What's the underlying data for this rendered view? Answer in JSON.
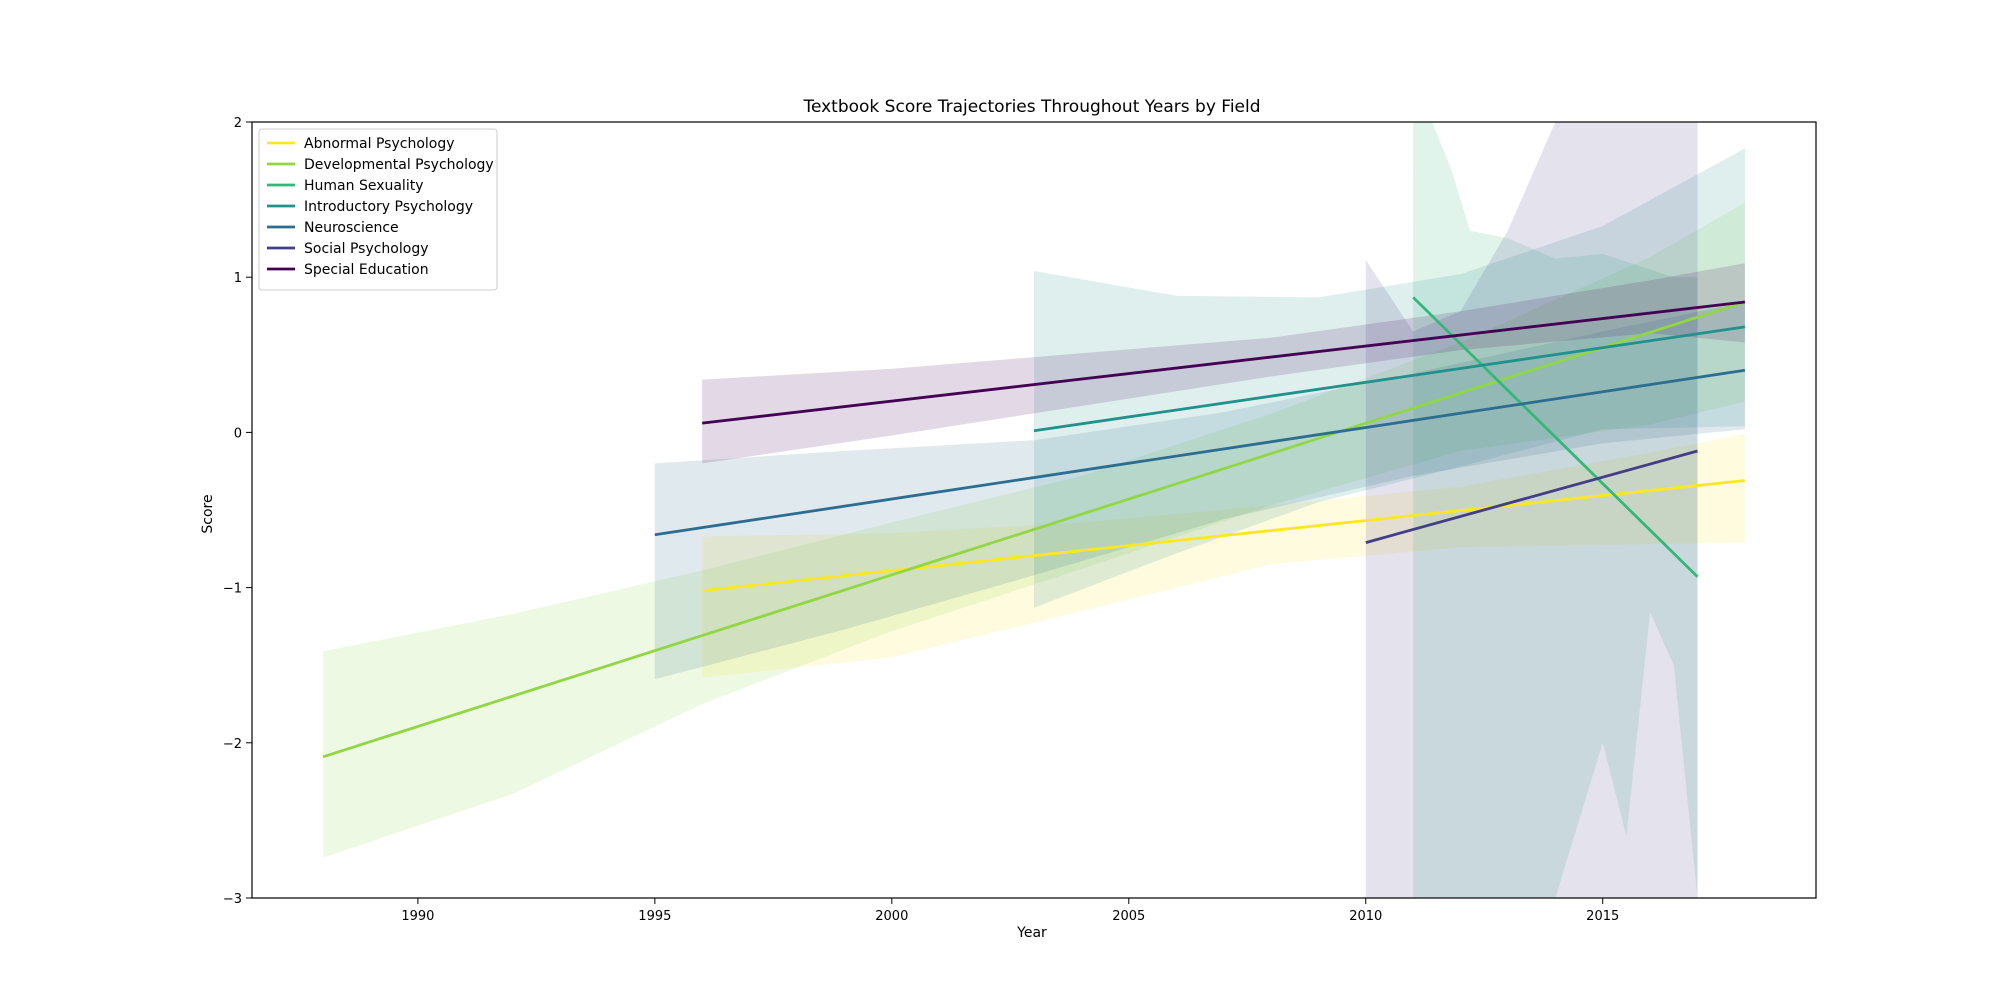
{
  "chart_data": {
    "type": "line",
    "title": "Textbook Score Trajectories Throughout Years by Field",
    "xlabel": "Year",
    "ylabel": "Score",
    "xlim": [
      1986.5,
      2019.5
    ],
    "ylim": [
      -3,
      2
    ],
    "xticks": [
      1990,
      1995,
      2000,
      2005,
      2010,
      2015
    ],
    "yticks": [
      -3,
      -2,
      -1,
      0,
      1,
      2
    ],
    "yticklabels": [
      "−3",
      "−2",
      "−1",
      "0",
      "1",
      "2"
    ],
    "grid": false,
    "legend_position": "upper-left",
    "series": [
      {
        "name": "Abnormal Psychology",
        "color": "#fde725",
        "x": [
          1996,
          2018
        ],
        "y": [
          -1.02,
          -0.31
        ],
        "band": {
          "x": [
            1996,
            2000,
            2004,
            2008,
            2012,
            2016,
            2018
          ],
          "lower": [
            -1.58,
            -1.45,
            -1.15,
            -0.85,
            -0.74,
            -0.72,
            -0.71
          ],
          "upper": [
            -0.67,
            -0.65,
            -0.58,
            -0.47,
            -0.35,
            -0.13,
            -0.01
          ]
        }
      },
      {
        "name": "Developmental Psychology",
        "color": "#90d743",
        "x": [
          1988,
          2018
        ],
        "y": [
          -2.09,
          0.84
        ],
        "band": {
          "x": [
            1988,
            1992,
            1996,
            2000,
            2004,
            2008,
            2012,
            2016,
            2018
          ],
          "lower": [
            -2.74,
            -2.33,
            -1.75,
            -1.28,
            -0.88,
            -0.47,
            -0.12,
            0.05,
            0.2
          ],
          "upper": [
            -1.41,
            -1.17,
            -0.89,
            -0.58,
            -0.28,
            0.12,
            0.58,
            1.13,
            1.48
          ]
        }
      },
      {
        "name": "Human Sexuality",
        "color": "#35b779",
        "x": [
          2011,
          2017
        ],
        "y": [
          0.87,
          -0.93
        ],
        "band": {
          "x": [
            2011,
            2011.4,
            2011.8,
            2012.2,
            2013,
            2014,
            2015,
            2015.5,
            2016,
            2016.5,
            2017
          ],
          "lower": [
            -3,
            -3,
            -3,
            -3,
            -3,
            -3,
            -2.0,
            -2.6,
            -1.16,
            -1.5,
            -3
          ],
          "upper": [
            2,
            2,
            1.7,
            1.3,
            1.25,
            1.12,
            1.15,
            1.1,
            1.05,
            1.0,
            1.0
          ]
        }
      },
      {
        "name": "Introductory Psychology",
        "color": "#21918c",
        "x": [
          2003,
          2018
        ],
        "y": [
          0.01,
          0.68
        ],
        "band": {
          "x": [
            2003,
            2006,
            2009,
            2012,
            2015,
            2018
          ],
          "lower": [
            -1.13,
            -0.78,
            -0.45,
            -0.22,
            0.02,
            0.04
          ],
          "upper": [
            1.04,
            0.88,
            0.87,
            1.02,
            1.33,
            1.83
          ]
        }
      },
      {
        "name": "Neuroscience",
        "color": "#2c6e8f",
        "x": [
          1995,
          2018
        ],
        "y": [
          -0.66,
          0.4
        ],
        "band": {
          "x": [
            1995,
            1999,
            2003,
            2007,
            2011,
            2015,
            2018
          ],
          "lower": [
            -1.59,
            -1.27,
            -0.92,
            -0.56,
            -0.28,
            -0.07,
            0.02
          ],
          "upper": [
            -0.2,
            -0.12,
            -0.05,
            0.13,
            0.38,
            0.65,
            0.84
          ]
        }
      },
      {
        "name": "Social Psychology",
        "color": "#433e85",
        "x": [
          2010,
          2017
        ],
        "y": [
          -0.71,
          -0.12
        ],
        "band": {
          "x": [
            2010,
            2011,
            2012,
            2013,
            2014,
            2014.8,
            2015.3,
            2016,
            2017
          ],
          "lower": [
            -3,
            -3,
            -3,
            -3,
            -3,
            -3,
            -3,
            -3,
            -3
          ],
          "upper": [
            1.11,
            0.65,
            0.78,
            1.3,
            2,
            2,
            2,
            2,
            2
          ]
        }
      },
      {
        "name": "Special Education",
        "color": "#440154",
        "x": [
          1996,
          2018
        ],
        "y": [
          0.06,
          0.84
        ],
        "band": {
          "x": [
            1996,
            2000,
            2004,
            2008,
            2012,
            2016,
            2018
          ],
          "lower": [
            -0.2,
            -0.02,
            0.17,
            0.36,
            0.53,
            0.64,
            0.58
          ],
          "upper": [
            0.34,
            0.41,
            0.51,
            0.61,
            0.78,
            0.98,
            1.09
          ]
        }
      }
    ]
  }
}
